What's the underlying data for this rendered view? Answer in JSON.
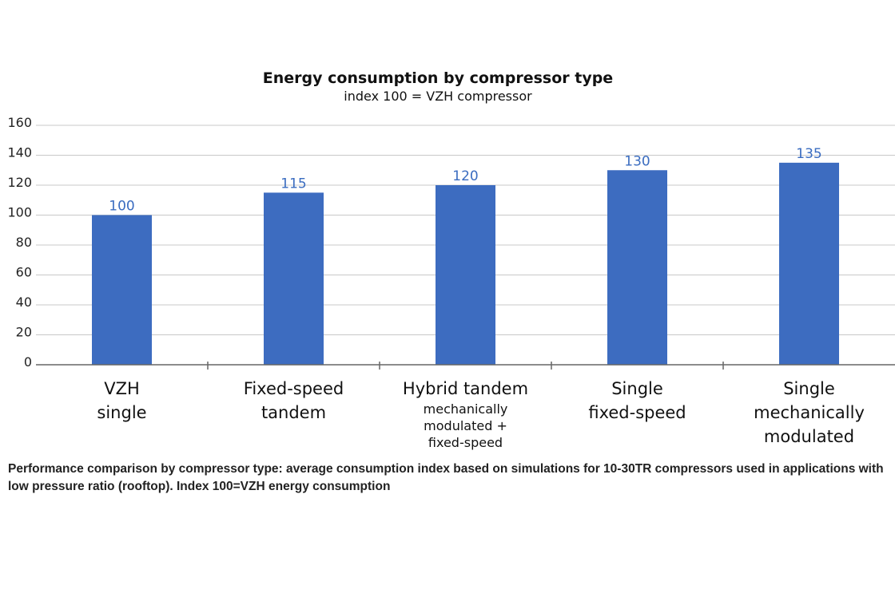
{
  "chart_data": {
    "type": "bar",
    "title": "Energy consumption by compressor type",
    "subtitle": "index 100 = VZH compressor",
    "categories": [
      {
        "lines": [
          "VZH",
          "single"
        ],
        "sub": []
      },
      {
        "lines": [
          "Fixed-speed",
          "tandem"
        ],
        "sub": []
      },
      {
        "lines": [
          "Hybrid tandem"
        ],
        "sub": [
          "mechanically",
          "modulated +",
          "fixed-speed"
        ]
      },
      {
        "lines": [
          "Single",
          "fixed-speed"
        ],
        "sub": []
      },
      {
        "lines": [
          "Single",
          "mechanically",
          "modulated"
        ],
        "sub": []
      }
    ],
    "values": [
      100,
      115,
      120,
      130,
      135
    ],
    "data_labels": [
      "100",
      "115",
      "120",
      "130",
      "135"
    ],
    "yticks": [
      0,
      20,
      40,
      60,
      80,
      100,
      120,
      140,
      160
    ],
    "ylim": [
      0,
      160
    ],
    "grid": true,
    "bar_color": "#3d6cc0",
    "label_color": "#3a6cc0"
  },
  "caption": "Performance comparison by compressor type: average consumption index based on simulations for 10-30TR compressors used in applications with low pressure ratio (rooftop). Index 100=VZH energy consumption"
}
